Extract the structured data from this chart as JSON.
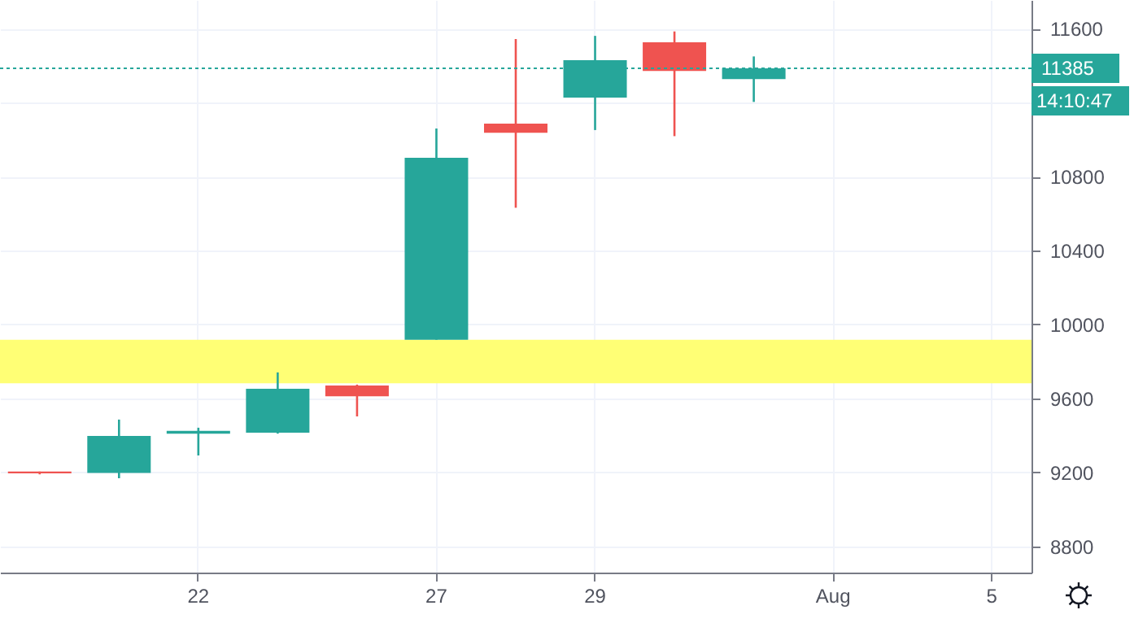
{
  "chart_data": {
    "type": "candlestick",
    "categories": [
      null,
      null,
      "22",
      null,
      null,
      "27",
      null,
      "29",
      null,
      null,
      "Aug",
      null,
      "5"
    ],
    "ohlc": [
      [
        9205,
        9205,
        9190,
        9195
      ],
      [
        9198,
        9486,
        9169,
        9398
      ],
      [
        9410,
        9442,
        9292,
        9425
      ],
      [
        9415,
        9741,
        9410,
        9653
      ],
      [
        9670,
        9675,
        9503,
        9612
      ],
      [
        9917,
        11059,
        9917,
        10901
      ],
      [
        11086,
        11543,
        10631,
        11036
      ],
      [
        11226,
        11560,
        11051,
        11429
      ],
      [
        11525,
        11584,
        11018,
        11370
      ],
      [
        11326,
        11449,
        11203,
        11385
      ],
      null,
      null,
      null
    ],
    "colors": [
      "#ef5350",
      "#26a69a",
      "#26a69a",
      "#26a69a",
      "#ef5350",
      "#26a69a",
      "#ef5350",
      "#26a69a",
      "#ef5350",
      "#26a69a",
      null,
      null,
      null
    ],
    "ylim": [
      8659,
      11754
    ],
    "yticks": [
      8800,
      9200,
      9600,
      10000,
      10400,
      10800,
      {
        "value": 11200,
        "label": null
      },
      11600
    ],
    "grid": true,
    "ref_lines": [
      {
        "axis": "y",
        "value": 11385,
        "label": "11385",
        "color": "#26a69a",
        "line_style": "dotted"
      }
    ],
    "bands": [
      {
        "axis": "y",
        "from": 9682,
        "to": 9917,
        "color": "#ffff6e"
      }
    ],
    "annotations": [
      "14:10:47"
    ]
  }
}
